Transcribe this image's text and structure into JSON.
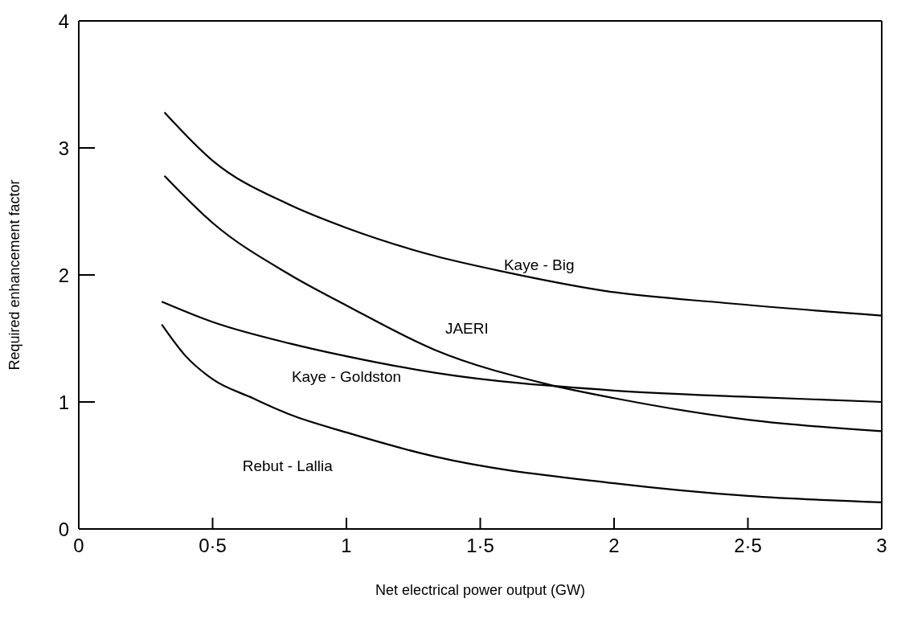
{
  "chart_data": {
    "type": "line",
    "xlabel": "Net electrical power output (GW)",
    "ylabel": "Required enhancement factor",
    "xlim": [
      0,
      3
    ],
    "xticks": [
      0,
      {
        "value": 0.5,
        "label": "0·5"
      },
      1,
      {
        "value": 1.5,
        "label": "1·5"
      },
      2,
      {
        "value": 2.5,
        "label": "2·5"
      },
      3
    ],
    "ylim": [
      0,
      4
    ],
    "yticks": [
      0,
      1,
      2,
      3,
      4
    ],
    "grid": false,
    "legend": false,
    "marker": "none",
    "line_style": "solid",
    "series": [
      {
        "name": "Kaye - Big",
        "color": "#000000",
        "x": [
          0.32,
          0.5,
          0.79,
          1.0,
          1.33,
          1.6,
          1.98,
          2.41,
          3.0
        ],
        "values": [
          3.28,
          2.9,
          2.55,
          2.37,
          2.15,
          2.02,
          1.87,
          1.78,
          1.68
        ]
      },
      {
        "name": "JAERI",
        "color": "#000000",
        "x": [
          0.32,
          0.5,
          0.79,
          1.0,
          1.33,
          1.75,
          2.0,
          2.5,
          3.0
        ],
        "values": [
          2.78,
          2.41,
          2.0,
          1.76,
          1.41,
          1.14,
          1.03,
          0.86,
          0.77
        ]
      },
      {
        "name": "Kaye - Goldston",
        "color": "#000000",
        "x": [
          0.31,
          0.5,
          0.79,
          1.0,
          1.33,
          2.0,
          2.5,
          3.0
        ],
        "values": [
          1.79,
          1.63,
          1.46,
          1.36,
          1.23,
          1.09,
          1.04,
          1.0
        ]
      },
      {
        "name": "Rebut - Lallia",
        "color": "#000000",
        "x": [
          0.31,
          0.4,
          0.5,
          0.65,
          0.79,
          1.0,
          1.33,
          2.0,
          2.5,
          3.0
        ],
        "values": [
          1.61,
          1.36,
          1.18,
          1.03,
          0.9,
          0.76,
          0.57,
          0.36,
          0.26,
          0.21
        ]
      }
    ]
  }
}
